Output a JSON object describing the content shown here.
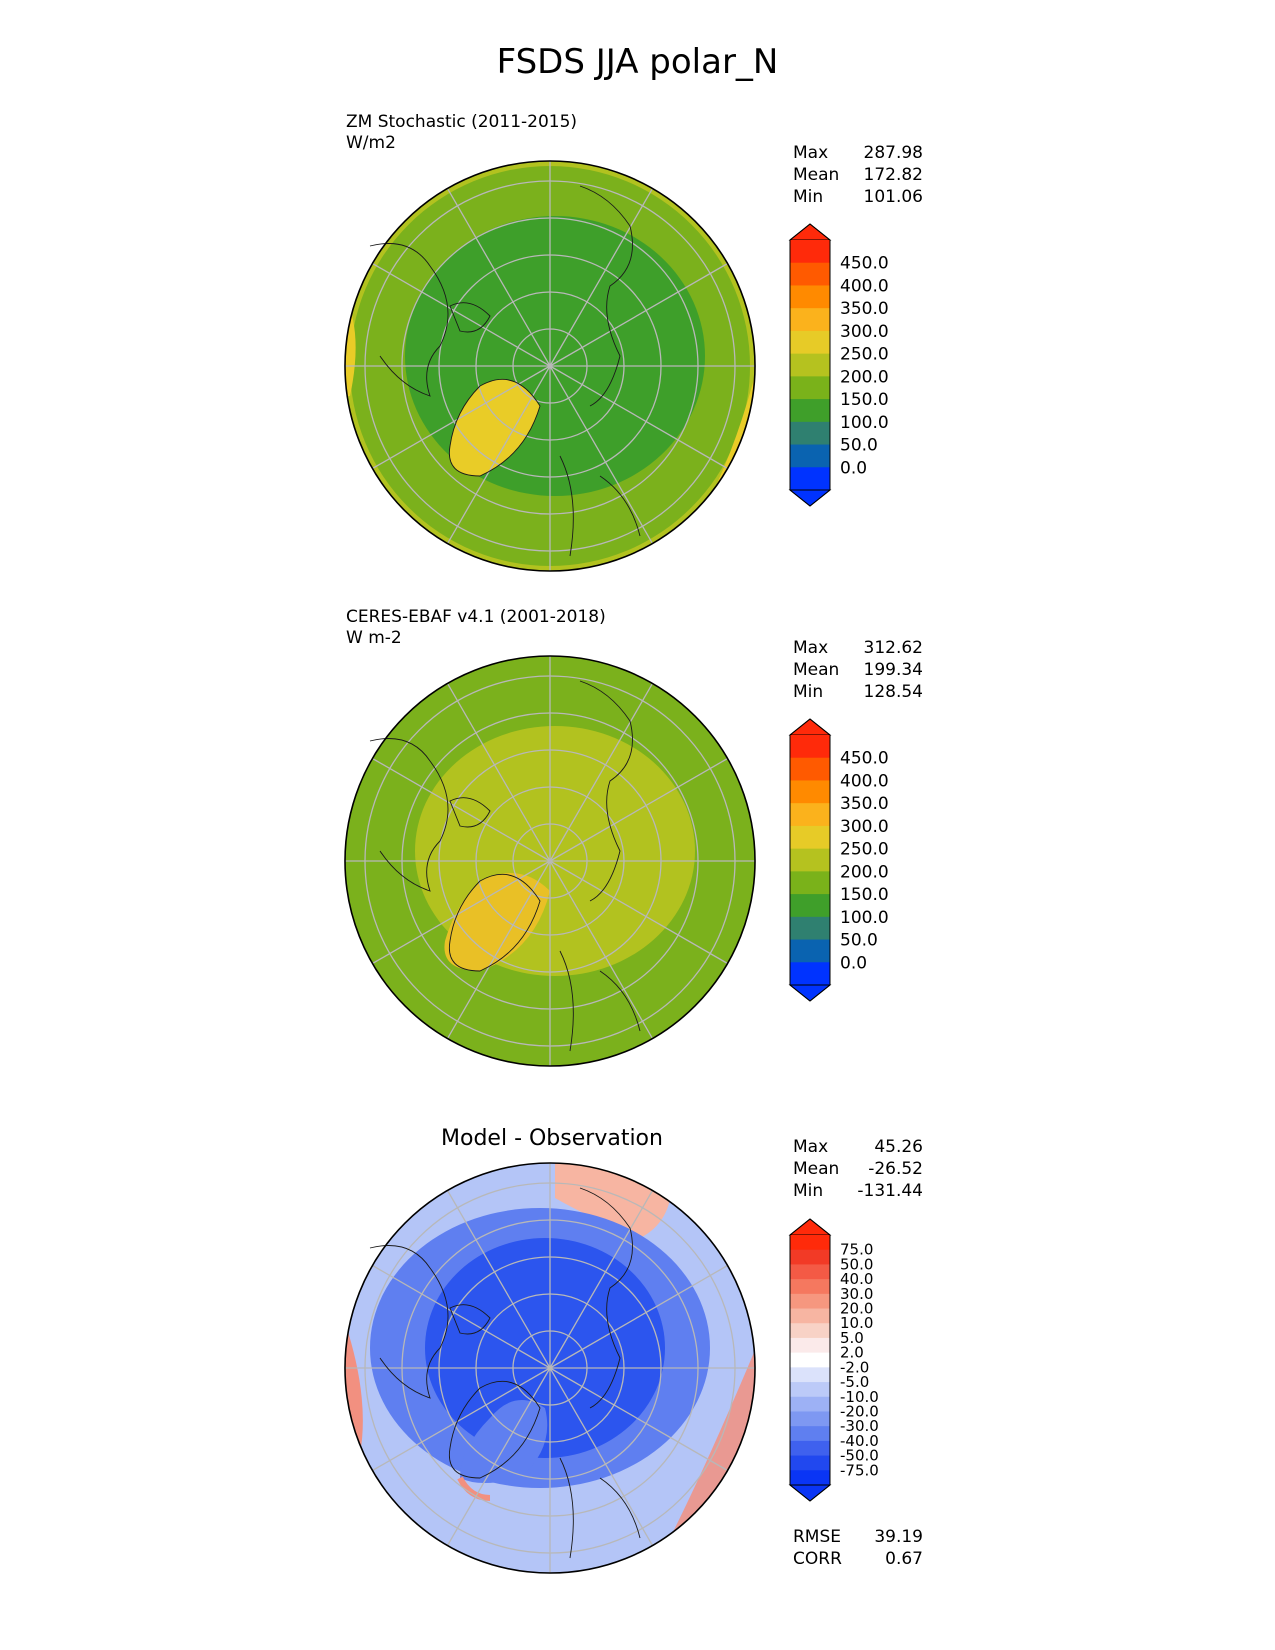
{
  "page_title": "FSDS JJA polar_N",
  "panels": [
    {
      "caption_line1": "ZM Stochastic (2011-2015)",
      "caption_line2": "W/m2",
      "stats": [
        {
          "label": "Max",
          "value": "287.98"
        },
        {
          "label": "Mean",
          "value": "172.82"
        },
        {
          "label": "Min",
          "value": "101.06"
        }
      ],
      "colorbar_ticks": [
        "450.0",
        "400.0",
        "350.0",
        "300.0",
        "250.0",
        "200.0",
        "150.0",
        "100.0",
        "50.0",
        "0.0"
      ],
      "colorbar_colors": [
        "#ff2a0a",
        "#ff5a00",
        "#ff8a00",
        "#fbb21c",
        "#e7cb27",
        "#b5c21f",
        "#7ab21a",
        "#3f9f2a",
        "#2f8070",
        "#0a63b0",
        "#0033ff"
      ],
      "map_colors": {
        "base": "#3e9f2a",
        "mid": "#7bb11c",
        "outer": "#b2c21f",
        "warm": "#e9cc27"
      }
    },
    {
      "caption_line1": "CERES-EBAF v4.1 (2001-2018)",
      "caption_line2": "W m-2",
      "stats": [
        {
          "label": "Max",
          "value": "312.62"
        },
        {
          "label": "Mean",
          "value": "199.34"
        },
        {
          "label": "Min",
          "value": "128.54"
        }
      ],
      "colorbar_ticks": [
        "450.0",
        "400.0",
        "350.0",
        "300.0",
        "250.0",
        "200.0",
        "150.0",
        "100.0",
        "50.0",
        "0.0"
      ],
      "colorbar_colors": [
        "#ff2a0a",
        "#ff5a00",
        "#ff8a00",
        "#fbb21c",
        "#e7cb27",
        "#b5c21f",
        "#7ab21a",
        "#3f9f2a",
        "#2f8070",
        "#0a63b0",
        "#0033ff"
      ],
      "map_colors": {
        "base": "#7bb11c",
        "mid": "#b2c21f",
        "outer": "#7bb11c",
        "warm": "#e9c026"
      }
    },
    {
      "center_title": "Model - Observation",
      "stats": [
        {
          "label": "Max",
          "value": "45.26"
        },
        {
          "label": "Mean",
          "value": "-26.52"
        },
        {
          "label": "Min",
          "value": "-131.44"
        }
      ],
      "colorbar_ticks": [
        "75.0",
        "50.0",
        "40.0",
        "30.0",
        "20.0",
        "10.0",
        "5.0",
        "2.0",
        "-2.0",
        "-5.0",
        "-10.0",
        "-20.0",
        "-30.0",
        "-40.0",
        "-50.0",
        "-75.0"
      ],
      "colorbar_colors": [
        "#ff2a0a",
        "#f23a26",
        "#f45a45",
        "#f5785f",
        "#f6977f",
        "#f7b5a2",
        "#f8d2c6",
        "#fbeaea",
        "#ffffff",
        "#dbe2fb",
        "#bccaf8",
        "#9db1f5",
        "#7e98f2",
        "#5f7ff0",
        "#3f61ee",
        "#2148ef",
        "#0a35f5"
      ],
      "metrics": [
        {
          "label": "RMSE",
          "value": "39.19"
        },
        {
          "label": "CORR",
          "value": "0.67"
        }
      ],
      "map_colors": {
        "base": "#2c55ee",
        "mid": "#5f7ff0",
        "outer": "#b4c5f7",
        "warm": "#f29080"
      }
    }
  ]
}
